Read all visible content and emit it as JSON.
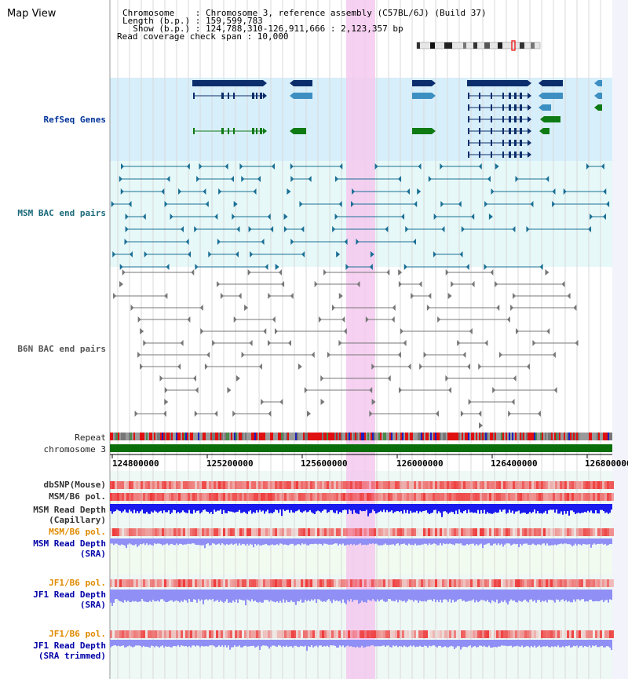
{
  "view": {
    "title": "Map View"
  },
  "info": {
    "line1": "Chromosome    : Chromosome 3, reference assembly (C57BL/6J) (Build 37)",
    "line2": "Length (b.p.) : 159,599,783",
    "line3": "  Show (b.p.) : 124,788,310-126,911,666 : 2,123,357 bp",
    "line4": "Read coverage check span : 10,000"
  },
  "tracks": {
    "refseq": "RefSeq Genes",
    "msm_bac": "MSM BAC end pairs",
    "b6n_bac": "B6N BAC end pairs",
    "repeat": "Repeat",
    "chromosome": "chromosome 3",
    "dbsnp": "dbSNP(Mouse)",
    "msm_pol": "MSM/B6 pol.",
    "msm_depth_cap_1": "MSM Read Depth",
    "msm_depth_cap_2": "(Capillary)",
    "msm_pol2": "MSM/B6 pol.",
    "msm_depth_sra_1": "MSM Read Depth",
    "msm_depth_sra_2": "(SRA)",
    "jf1_pol": "JF1/B6 pol.",
    "jf1_depth_1": "JF1 Read Depth",
    "jf1_depth_2": "(SRA)",
    "jf1_pol2": "JF1/B6 pol.",
    "jf1_trim_1": "JF1 Read Depth",
    "jf1_trim_2": "(SRA trimmed)"
  },
  "axis": {
    "ticks": [
      "124800000",
      "125200000",
      "125600000",
      "126000000",
      "126400000",
      "126800000"
    ]
  },
  "colors": {
    "highlight": "#f5c9ef",
    "refseq_bg": "#d7eefb",
    "msm_bg": "#e6f8f8",
    "gene_dark": "#0b2d6b",
    "gene_mid": "#3d8fc2",
    "gene_green": "#0e7a14",
    "chromosome_bar": "#0a6e0a",
    "snp_red": "#ee3a3a",
    "depth_blue": "#1a1aee",
    "depth_light": "#8f8ff5"
  }
}
